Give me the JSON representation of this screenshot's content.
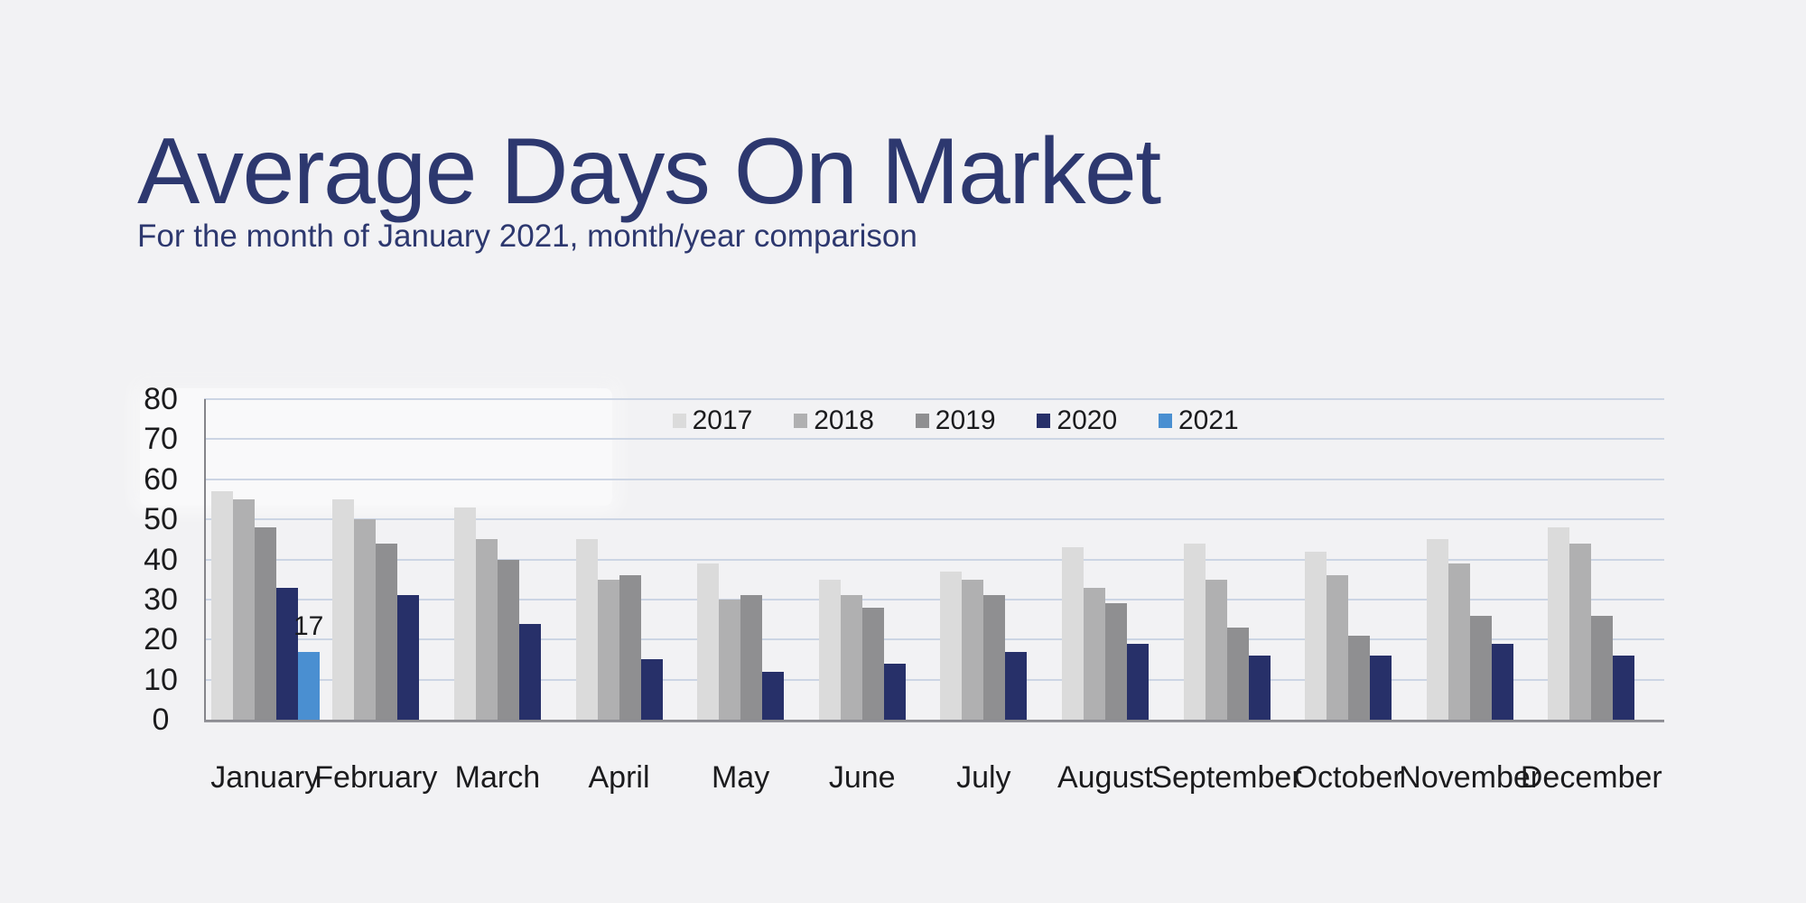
{
  "page": {
    "background_color": "#f2f2f4",
    "text_color": "#1b1b1d",
    "accent_color": "#2d386f"
  },
  "header": {
    "title": "Average Days On Market",
    "subtitle": "For the month of January 2021, month/year comparison"
  },
  "chart_data": {
    "type": "bar",
    "title": "Average Days On Market",
    "subtitle": "For the month of January 2021, month/year comparison",
    "categories": [
      "January",
      "February",
      "March",
      "April",
      "May",
      "June",
      "July",
      "August",
      "September",
      "October",
      "November",
      "December"
    ],
    "series": [
      {
        "name": "2017",
        "color": "#dbdbdb",
        "values": [
          57,
          55,
          53,
          45,
          39,
          35,
          37,
          43,
          44,
          42,
          45,
          48
        ]
      },
      {
        "name": "2018",
        "color": "#b0b0b1",
        "values": [
          55,
          50,
          45,
          35,
          30,
          31,
          35,
          33,
          35,
          36,
          39,
          44
        ]
      },
      {
        "name": "2019",
        "color": "#8f8f91",
        "values": [
          48,
          44,
          40,
          36,
          31,
          28,
          31,
          29,
          23,
          21,
          26,
          26
        ]
      },
      {
        "name": "2020",
        "color": "#273069",
        "values": [
          33,
          31,
          24,
          15,
          12,
          14,
          17,
          19,
          16,
          16,
          19,
          16
        ]
      },
      {
        "name": "2021",
        "color": "#4a8fd1",
        "values": [
          17,
          null,
          null,
          null,
          null,
          null,
          null,
          null,
          null,
          null,
          null,
          null
        ]
      }
    ],
    "data_labels": [
      {
        "category_index": 0,
        "series_name": "2021",
        "text": "17"
      }
    ],
    "ylabel": "",
    "xlabel": "",
    "ylim": [
      0,
      80
    ],
    "yticks": [
      0,
      10,
      20,
      30,
      40,
      50,
      60,
      70,
      80
    ],
    "grid": true,
    "gridline_color": "#ccd5e4",
    "axis_line_color": "#85858a",
    "baseline_color": "#9c9ca2",
    "legend_position": "top"
  }
}
